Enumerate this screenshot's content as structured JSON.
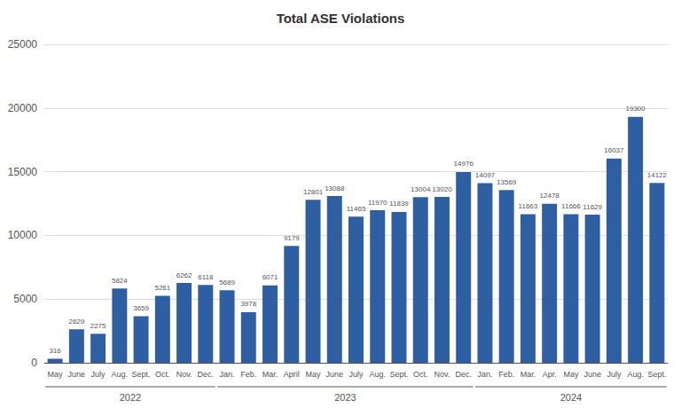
{
  "chart_data": {
    "type": "bar",
    "title": "Total ASE Violations",
    "categories": [
      "May",
      "June",
      "July",
      "Aug.",
      "Sept.",
      "Oct.",
      "Nov.",
      "Dec.",
      "Jan.",
      "Feb.",
      "Mar.",
      "April",
      "May",
      "June",
      "July",
      "Aug.",
      "Sept.",
      "Oct.",
      "Nov.",
      "Dec.",
      "Jan.",
      "Feb.",
      "Mar.",
      "Apr.",
      "May",
      "June",
      "July",
      "Aug.",
      "Sept."
    ],
    "values": [
      316,
      2629,
      2275,
      5824,
      3659,
      5261,
      6262,
      6118,
      5689,
      3978,
      6071,
      9179,
      12801,
      13088,
      11465,
      11970,
      11839,
      13004,
      13020,
      14976,
      14097,
      13569,
      11663,
      12478,
      11666,
      11629,
      16037,
      19300,
      14122
    ],
    "color": "#2E5FA3",
    "ylim": [
      0,
      25000
    ],
    "yticks": [
      0,
      5000,
      10000,
      15000,
      20000,
      25000
    ],
    "grid": true,
    "data_labels": true,
    "groups": [
      {
        "label": "2022",
        "start": 0,
        "end": 7
      },
      {
        "label": "2023",
        "start": 8,
        "end": 19
      },
      {
        "label": "2024",
        "start": 20,
        "end": 28
      }
    ]
  }
}
